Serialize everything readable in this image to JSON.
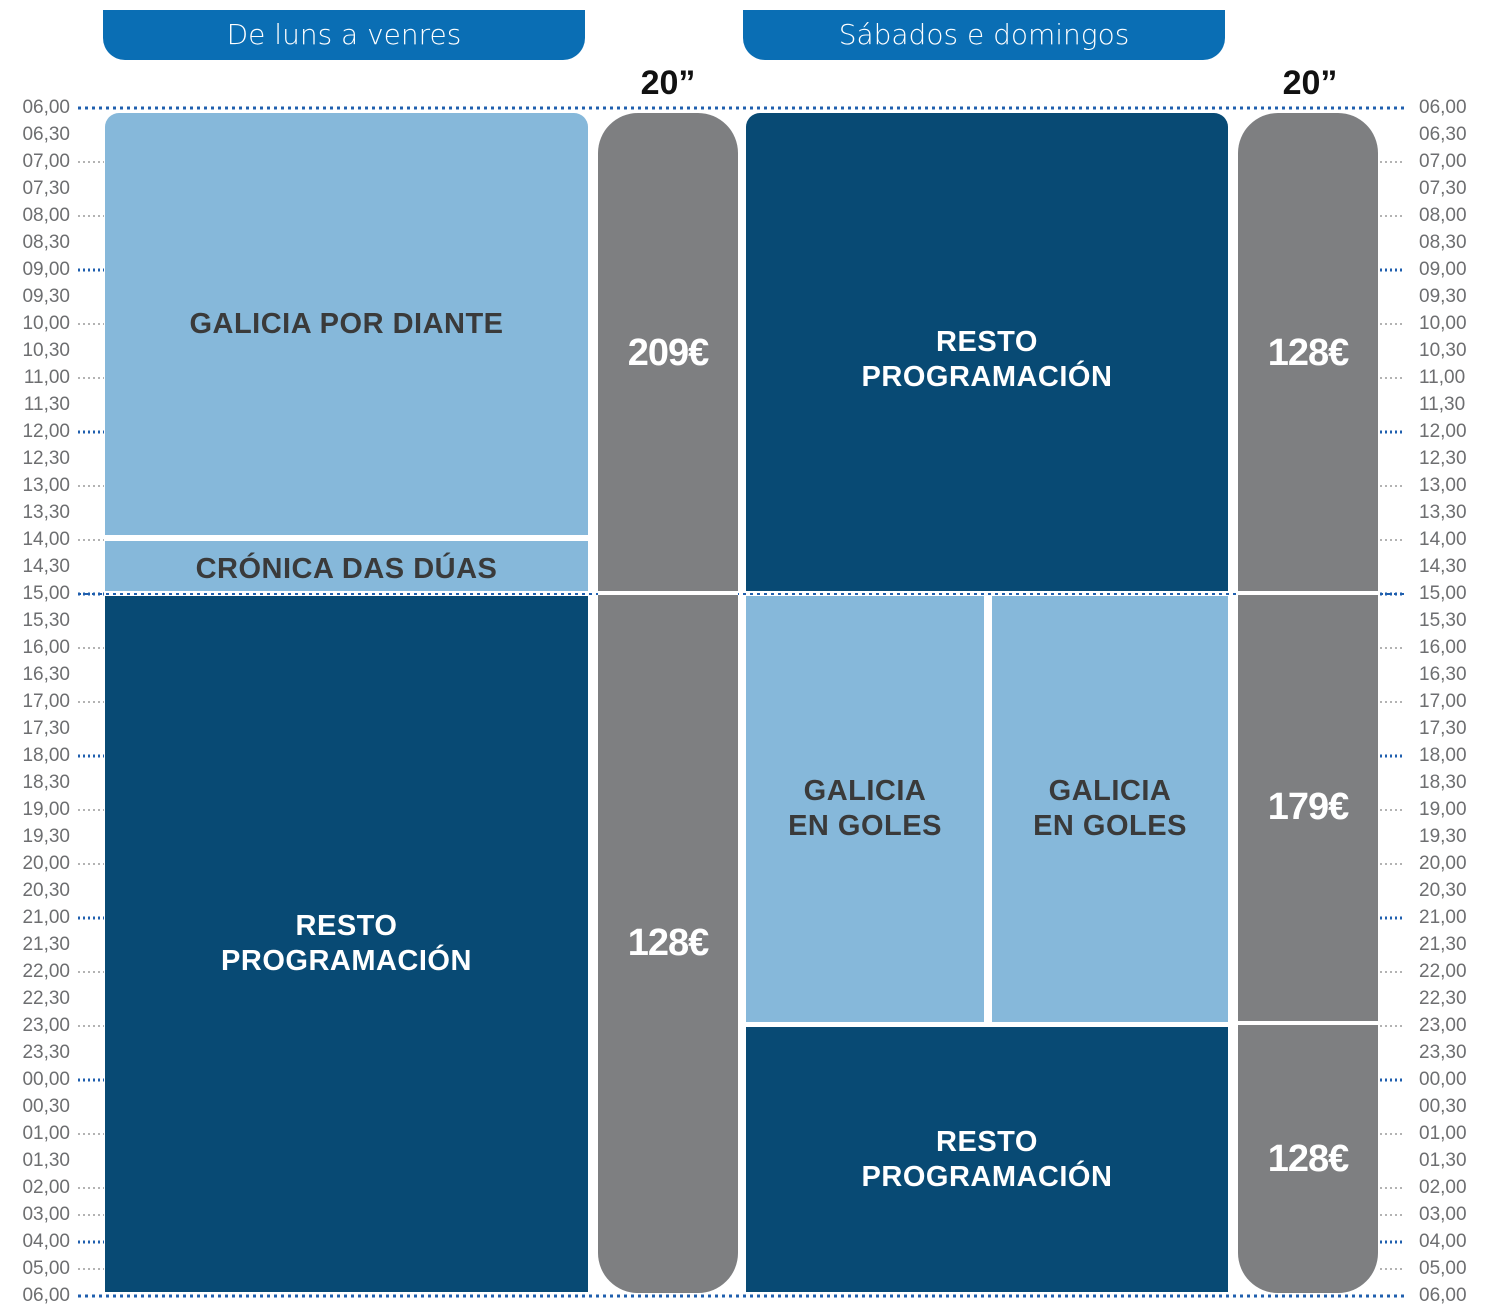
{
  "header": {
    "weekday_tab": "De luns a venres",
    "weekend_tab": "Sábados e domingos",
    "weekday_duration": "20”",
    "weekend_duration": "20”"
  },
  "time_labels": [
    "06,00",
    "06,30",
    "07,00",
    "07,30",
    "08,00",
    "08,30",
    "09,00",
    "09,30",
    "10,00",
    "10,30",
    "11,00",
    "11,30",
    "12,00",
    "12,30",
    "13,00",
    "13,30",
    "14,00",
    "14,30",
    "15,00",
    "15,30",
    "16,00",
    "16,30",
    "17,00",
    "17,30",
    "18,00",
    "18,30",
    "19,00",
    "19,30",
    "20,00",
    "20,30",
    "21,00",
    "21,30",
    "22,00",
    "22,30",
    "23,00",
    "23,30",
    "00,00",
    "00,30",
    "01,00",
    "01,30",
    "02,00",
    "03,00",
    "04,00",
    "05,00",
    "06,00"
  ],
  "weekday": {
    "galicia_por_diante": "GALICIA POR DIANTE",
    "cronica_das_duas": "CRÓNICA DAS DÚAS",
    "resto_programacion_line1": "RESTO",
    "resto_programacion_line2": "PROGRAMACIÓN",
    "price_morning": "209€",
    "price_rest": "128€"
  },
  "weekend": {
    "resto_morning_line1": "RESTO",
    "resto_morning_line2": "PROGRAMACIÓN",
    "galicia_en_goles_a_line1": "GALICIA",
    "galicia_en_goles_a_line2": "EN GOLES",
    "galicia_en_goles_b_line1": "GALICIA",
    "galicia_en_goles_b_line2": "EN GOLES",
    "resto_night_line1": "RESTO",
    "resto_night_line2": "PROGRAMACIÓN",
    "price_morning": "128€",
    "price_afternoon": "179€",
    "price_night": "128€"
  },
  "colors": {
    "tab_blue": "#0a6eb4",
    "light_block": "#86b8da",
    "dark_block": "#084a74",
    "price_column": "#7e7f81",
    "grid_major": "#1f5fae",
    "grid_minor": "#9a9a9a",
    "label_gray": "#6d6e70"
  }
}
